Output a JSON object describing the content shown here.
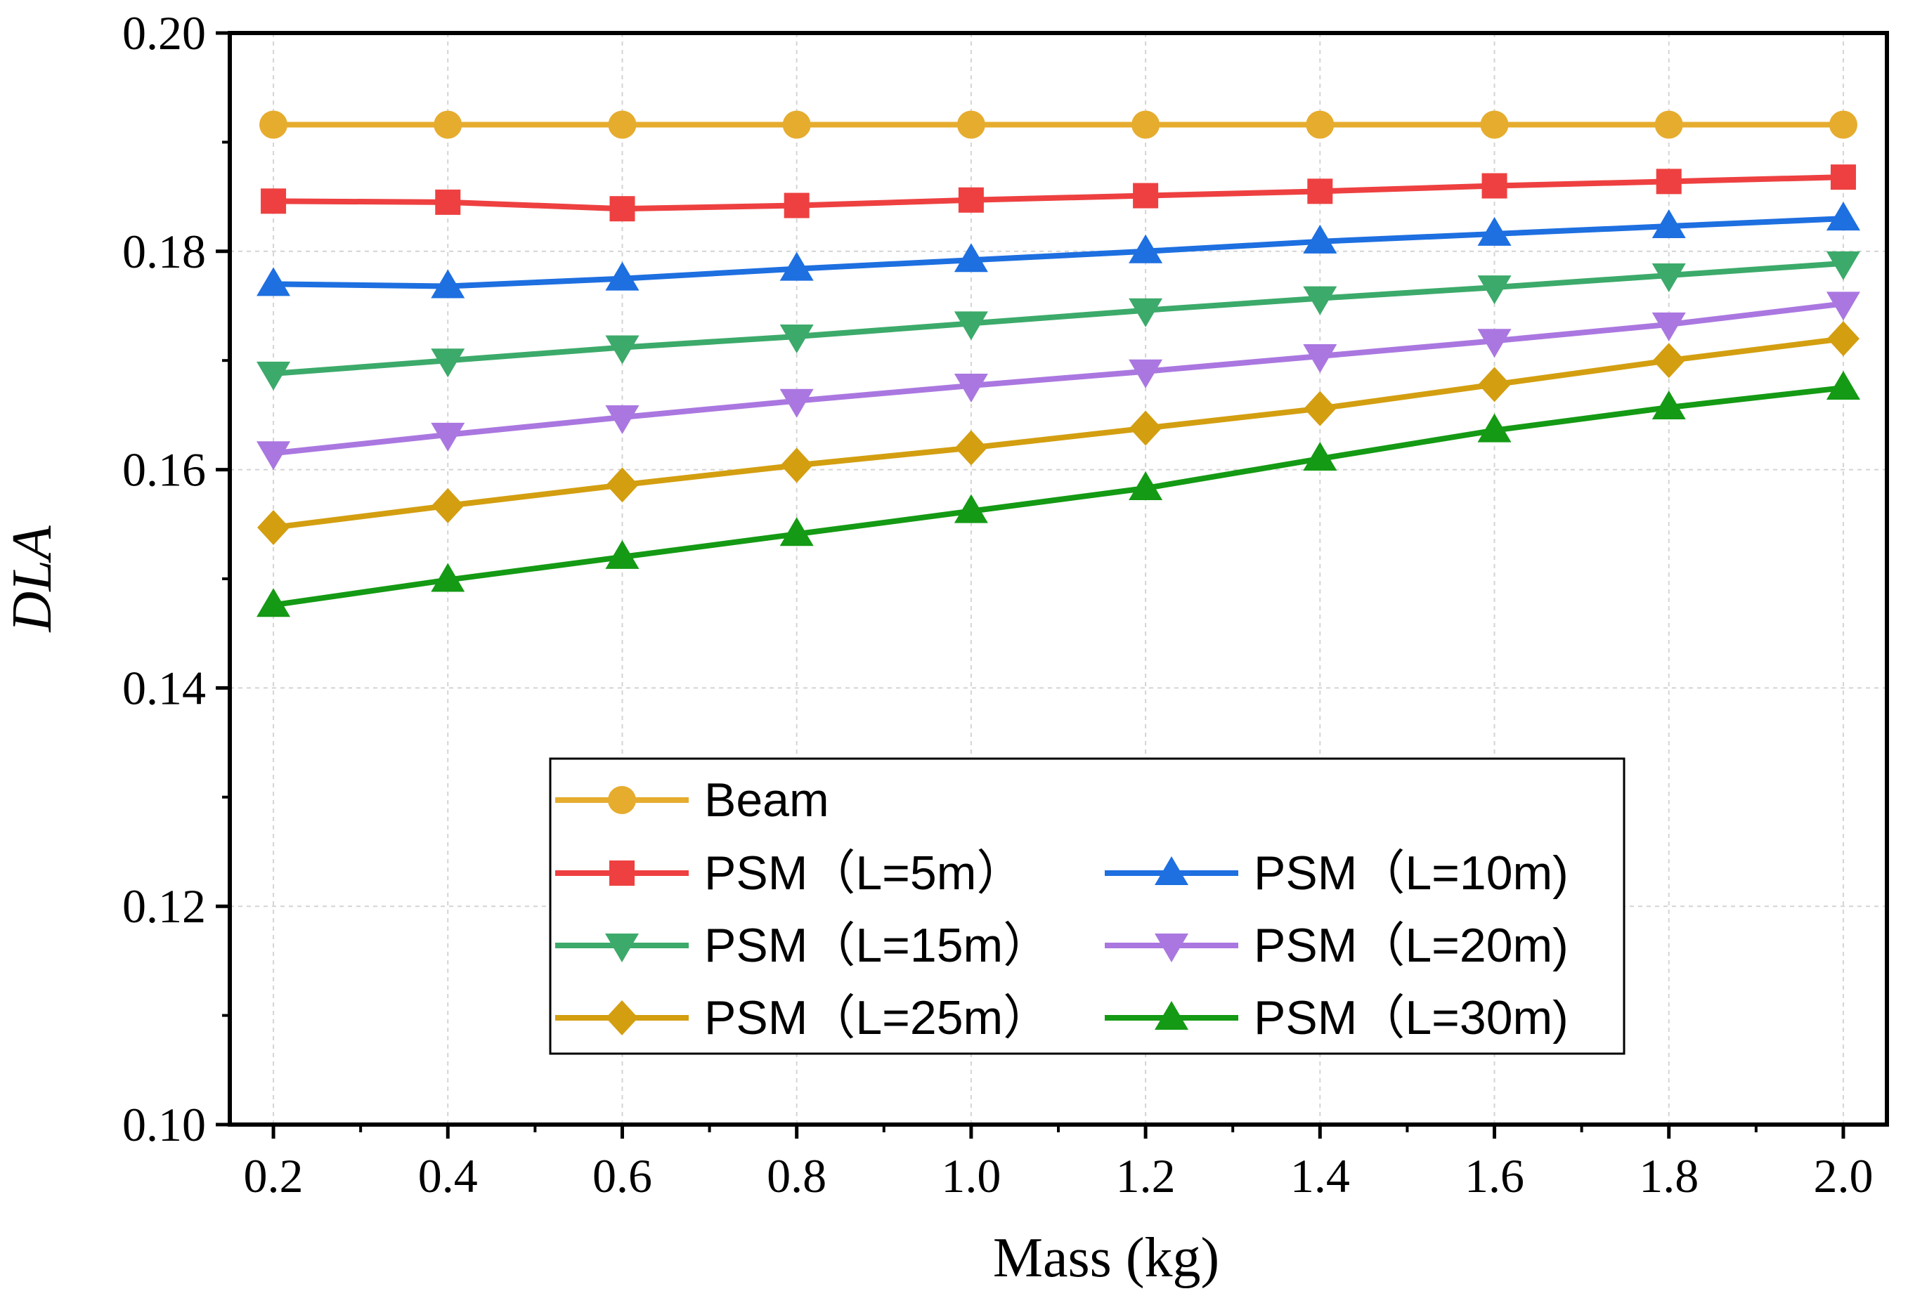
{
  "chart_data": {
    "type": "line",
    "title": "",
    "xlabel": "Mass (kg)",
    "ylabel": "DLA",
    "x": [
      0.2,
      0.4,
      0.6,
      0.8,
      1.0,
      1.2,
      1.4,
      1.6,
      1.8,
      2.0
    ],
    "x_tick_labels": [
      "0.2",
      "0.4",
      "0.6",
      "0.8",
      "1.0",
      "1.2",
      "1.4",
      "1.6",
      "1.8",
      "2.0"
    ],
    "y_tick_values": [
      0.1,
      0.12,
      0.14,
      0.16,
      0.18,
      0.2
    ],
    "y_tick_labels": [
      "0.10",
      "0.12",
      "0.14",
      "0.16",
      "0.18",
      "0.20"
    ],
    "xlim": [
      0.15,
      2.05
    ],
    "ylim": [
      0.1,
      0.2
    ],
    "grid": true,
    "legend_position": "bottom-center",
    "series": [
      {
        "name": "Beam",
        "color": "#E6AC2E",
        "marker": "circle",
        "values": [
          0.1916,
          0.1916,
          0.1916,
          0.1916,
          0.1916,
          0.1916,
          0.1916,
          0.1916,
          0.1916,
          0.1916
        ]
      },
      {
        "name": "PSM（L=5m）",
        "color": "#EE4040",
        "marker": "square",
        "values": [
          0.1846,
          0.1845,
          0.1839,
          0.1842,
          0.1847,
          0.1851,
          0.1855,
          0.186,
          0.1864,
          0.1868
        ]
      },
      {
        "name": "PSM（L=10m)",
        "color": "#1E6FE0",
        "marker": "triangle-up",
        "values": [
          0.177,
          0.1768,
          0.1775,
          0.1784,
          0.1792,
          0.18,
          0.1809,
          0.1816,
          0.1823,
          0.183
        ]
      },
      {
        "name": "PSM（L=15m）",
        "color": "#3CAA6A",
        "marker": "triangle-down",
        "values": [
          0.1688,
          0.17,
          0.1712,
          0.1722,
          0.1734,
          0.1746,
          0.1757,
          0.1767,
          0.1778,
          0.1789
        ]
      },
      {
        "name": "PSM（L=20m)",
        "color": "#AA77E0",
        "marker": "triangle-down",
        "values": [
          0.1615,
          0.1632,
          0.1648,
          0.1663,
          0.1677,
          0.169,
          0.1704,
          0.1718,
          0.1733,
          0.1752
        ]
      },
      {
        "name": "PSM（L=25m）",
        "color": "#D39E10",
        "marker": "diamond",
        "values": [
          0.1547,
          0.1567,
          0.1586,
          0.1604,
          0.162,
          0.1638,
          0.1656,
          0.1678,
          0.17,
          0.172
        ]
      },
      {
        "name": "PSM（L=30m)",
        "color": "#149A14",
        "marker": "triangle-up",
        "values": [
          0.1476,
          0.1499,
          0.152,
          0.1541,
          0.1562,
          0.1583,
          0.161,
          0.1636,
          0.1657,
          0.1675
        ]
      }
    ]
  }
}
